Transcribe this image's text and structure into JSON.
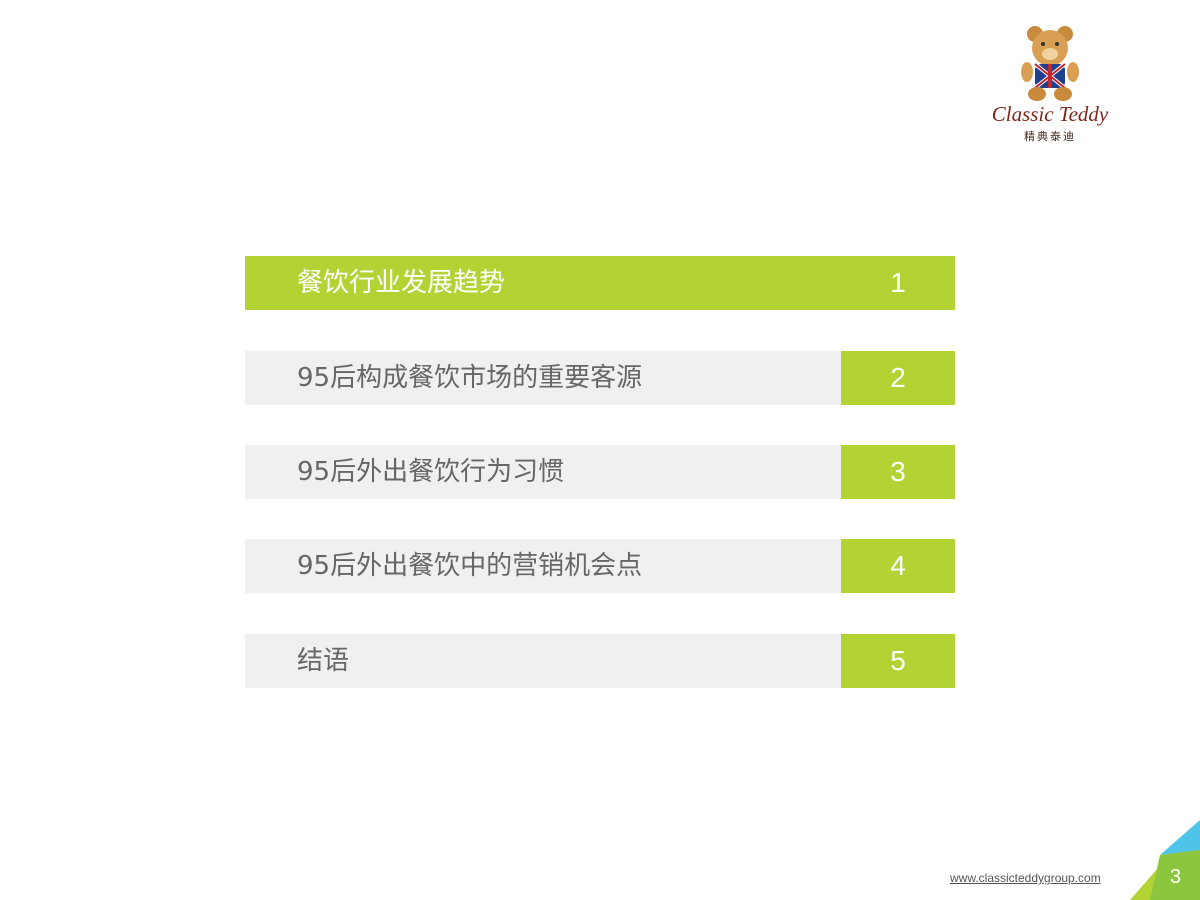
{
  "logo": {
    "script_text": "Classic Teddy",
    "chinese_text": "精典泰迪"
  },
  "agenda": [
    {
      "label": "餐饮行业发展趋势",
      "number": "1",
      "active": true
    },
    {
      "label": "95后构成餐饮市场的重要客源",
      "number": "2",
      "active": false
    },
    {
      "label": "95后外出餐饮行为习惯",
      "number": "3",
      "active": false
    },
    {
      "label": "95后外出餐饮中的营销机会点",
      "number": "4",
      "active": false
    },
    {
      "label": "结语",
      "number": "5",
      "active": false
    }
  ],
  "footer": {
    "website": "www.classicteddygroup.com",
    "page_number": "3"
  },
  "colors": {
    "accent_green": "#b3d335",
    "row_grey": "#f0f0f0",
    "text_grey": "#666666",
    "corner_blue": "#4fc3e8"
  }
}
